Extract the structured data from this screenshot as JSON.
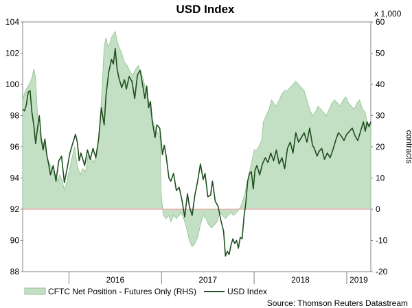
{
  "chart_data": {
    "type": "line+area",
    "title": "USD Index",
    "source": "Source: Thomson Reuters Datastream",
    "left_axis": {
      "ylim": [
        88,
        104
      ],
      "ticks": [
        "88",
        "90",
        "92",
        "94",
        "96",
        "98",
        "100",
        "102",
        "104"
      ]
    },
    "right_axis": {
      "multiplier_label": "x 1,000",
      "label": "contracts",
      "ylim": [
        -20,
        60
      ],
      "ticks": [
        "-20",
        "-10",
        "0",
        "10",
        "20",
        "30",
        "40",
        "50",
        "60"
      ]
    },
    "x_axis": {
      "range": [
        2015.5,
        2019.26
      ],
      "ticks": [
        {
          "label": "2016",
          "pos": 2016
        },
        {
          "label": "2017",
          "pos": 2017
        },
        {
          "label": "2018",
          "pos": 2018
        },
        {
          "label": "2019",
          "pos": 2019
        }
      ]
    },
    "legend": [
      "CFTC Net Position - Futures Only (RHS)",
      "USD Index"
    ],
    "colors": {
      "area_fill": "#c4e0c4",
      "area_stroke": "#8fbf8f",
      "line": "#1e4d1e",
      "zero_line": "#e8a7a7"
    },
    "series": [
      {
        "name": "CFTC Net Position - Futures Only (RHS)",
        "kind": "area",
        "axis": "right",
        "points": [
          [
            2015.5,
            35
          ],
          [
            2015.53,
            38
          ],
          [
            2015.57,
            40
          ],
          [
            2015.6,
            42
          ],
          [
            2015.62,
            45
          ],
          [
            2015.64,
            42
          ],
          [
            2015.66,
            30
          ],
          [
            2015.68,
            25
          ],
          [
            2015.71,
            22
          ],
          [
            2015.74,
            20
          ],
          [
            2015.77,
            16
          ],
          [
            2015.8,
            14
          ],
          [
            2015.83,
            12
          ],
          [
            2015.86,
            11
          ],
          [
            2015.88,
            9
          ],
          [
            2015.9,
            11
          ],
          [
            2015.93,
            9
          ],
          [
            2015.95,
            6
          ],
          [
            2015.97,
            8
          ],
          [
            2016.0,
            12
          ],
          [
            2016.03,
            16
          ],
          [
            2016.06,
            20
          ],
          [
            2016.09,
            14
          ],
          [
            2016.12,
            11
          ],
          [
            2016.15,
            13
          ],
          [
            2016.18,
            12
          ],
          [
            2016.21,
            18
          ],
          [
            2016.24,
            16
          ],
          [
            2016.27,
            15
          ],
          [
            2016.3,
            18
          ],
          [
            2016.33,
            25
          ],
          [
            2016.36,
            40
          ],
          [
            2016.38,
            52
          ],
          [
            2016.4,
            55
          ],
          [
            2016.42,
            52
          ],
          [
            2016.44,
            53
          ],
          [
            2016.46,
            55
          ],
          [
            2016.48,
            56
          ],
          [
            2016.5,
            57
          ],
          [
            2016.52,
            54
          ],
          [
            2016.54,
            52
          ],
          [
            2016.57,
            50
          ],
          [
            2016.6,
            47
          ],
          [
            2016.63,
            46
          ],
          [
            2016.66,
            44
          ],
          [
            2016.69,
            43
          ],
          [
            2016.72,
            45
          ],
          [
            2016.75,
            46
          ],
          [
            2016.77,
            44
          ],
          [
            2016.8,
            42
          ],
          [
            2016.83,
            38
          ],
          [
            2016.86,
            35
          ],
          [
            2016.89,
            30
          ],
          [
            2016.92,
            27
          ],
          [
            2016.95,
            25
          ],
          [
            2016.97,
            24
          ],
          [
            2016.985,
            23
          ],
          [
            2016.995,
            5
          ],
          [
            2017.02,
            -2
          ],
          [
            2017.05,
            -3
          ],
          [
            2017.08,
            -2
          ],
          [
            2017.1,
            -4
          ],
          [
            2017.13,
            -2
          ],
          [
            2017.16,
            -3
          ],
          [
            2017.19,
            -2
          ],
          [
            2017.21,
            -1
          ],
          [
            2017.24,
            -3
          ],
          [
            2017.27,
            -6
          ],
          [
            2017.3,
            -10
          ],
          [
            2017.33,
            -12
          ],
          [
            2017.36,
            -11
          ],
          [
            2017.39,
            -9
          ],
          [
            2017.42,
            -5
          ],
          [
            2017.45,
            -2
          ],
          [
            2017.48,
            -3
          ],
          [
            2017.51,
            -5
          ],
          [
            2017.54,
            -6
          ],
          [
            2017.57,
            -5
          ],
          [
            2017.6,
            -4
          ],
          [
            2017.63,
            -1
          ],
          [
            2017.66,
            -2
          ],
          [
            2017.69,
            -3
          ],
          [
            2017.72,
            -2
          ],
          [
            2017.75,
            -1
          ],
          [
            2017.78,
            -2
          ],
          [
            2017.81,
            -1
          ],
          [
            2017.84,
            0
          ],
          [
            2017.87,
            2
          ],
          [
            2017.9,
            5
          ],
          [
            2017.92,
            8
          ],
          [
            2017.95,
            12
          ],
          [
            2017.98,
            16
          ],
          [
            2018.0,
            19
          ],
          [
            2018.03,
            19
          ],
          [
            2018.05,
            20
          ],
          [
            2018.08,
            22
          ],
          [
            2018.1,
            28
          ],
          [
            2018.13,
            30
          ],
          [
            2018.16,
            32
          ],
          [
            2018.19,
            35
          ],
          [
            2018.21,
            34
          ],
          [
            2018.24,
            33
          ],
          [
            2018.27,
            35
          ],
          [
            2018.3,
            37
          ],
          [
            2018.33,
            38
          ],
          [
            2018.36,
            38
          ],
          [
            2018.39,
            39
          ],
          [
            2018.42,
            40
          ],
          [
            2018.45,
            41
          ],
          [
            2018.48,
            40
          ],
          [
            2018.51,
            39
          ],
          [
            2018.54,
            38
          ],
          [
            2018.57,
            35
          ],
          [
            2018.6,
            32
          ],
          [
            2018.63,
            30
          ],
          [
            2018.66,
            31
          ],
          [
            2018.69,
            33
          ],
          [
            2018.72,
            32
          ],
          [
            2018.75,
            31
          ],
          [
            2018.78,
            30
          ],
          [
            2018.81,
            32
          ],
          [
            2018.84,
            34
          ],
          [
            2018.87,
            35
          ],
          [
            2018.9,
            34
          ],
          [
            2018.93,
            33
          ],
          [
            2018.96,
            35
          ],
          [
            2018.99,
            36
          ],
          [
            2019.02,
            34
          ],
          [
            2019.05,
            33
          ],
          [
            2019.08,
            32
          ],
          [
            2019.11,
            34
          ],
          [
            2019.14,
            35
          ],
          [
            2019.17,
            32
          ],
          [
            2019.2,
            31
          ],
          [
            2019.23,
            26
          ],
          [
            2019.26,
            27
          ]
        ]
      },
      {
        "name": "USD Index",
        "kind": "line",
        "axis": "left",
        "points": [
          [
            2015.5,
            98.4
          ],
          [
            2015.52,
            98.3
          ],
          [
            2015.54,
            98.7
          ],
          [
            2015.56,
            99.5
          ],
          [
            2015.58,
            99.6
          ],
          [
            2015.6,
            98.2
          ],
          [
            2015.62,
            97.4
          ],
          [
            2015.64,
            96.2
          ],
          [
            2015.66,
            97.2
          ],
          [
            2015.68,
            98.0
          ],
          [
            2015.7,
            96.5
          ],
          [
            2015.72,
            95.8
          ],
          [
            2015.74,
            96.5
          ],
          [
            2015.76,
            95.5
          ],
          [
            2015.78,
            94.9
          ],
          [
            2015.8,
            94.2
          ],
          [
            2015.83,
            94.8
          ],
          [
            2015.86,
            93.8
          ],
          [
            2015.89,
            95.1
          ],
          [
            2015.92,
            95.4
          ],
          [
            2015.95,
            93.7
          ],
          [
            2015.98,
            94.6
          ],
          [
            2016.01,
            95.6
          ],
          [
            2016.04,
            96.2
          ],
          [
            2016.07,
            96.8
          ],
          [
            2016.09,
            96.3
          ],
          [
            2016.11,
            95.1
          ],
          [
            2016.13,
            95.6
          ],
          [
            2016.15,
            95.2
          ],
          [
            2016.17,
            94.8
          ],
          [
            2016.2,
            95.8
          ],
          [
            2016.23,
            95.2
          ],
          [
            2016.26,
            95.9
          ],
          [
            2016.29,
            95.3
          ],
          [
            2016.32,
            96.5
          ],
          [
            2016.35,
            98.5
          ],
          [
            2016.38,
            97.4
          ],
          [
            2016.4,
            99.3
          ],
          [
            2016.43,
            100.8
          ],
          [
            2016.46,
            101.6
          ],
          [
            2016.48,
            101.3
          ],
          [
            2016.5,
            102.3
          ],
          [
            2016.52,
            101.0
          ],
          [
            2016.54,
            100.4
          ],
          [
            2016.57,
            99.8
          ],
          [
            2016.6,
            100.3
          ],
          [
            2016.62,
            99.7
          ],
          [
            2016.65,
            100.5
          ],
          [
            2016.68,
            100.2
          ],
          [
            2016.71,
            99.1
          ],
          [
            2016.74,
            100.6
          ],
          [
            2016.77,
            100.9
          ],
          [
            2016.8,
            99.8
          ],
          [
            2016.82,
            99.1
          ],
          [
            2016.84,
            99.9
          ],
          [
            2016.86,
            98.5
          ],
          [
            2016.88,
            98.9
          ],
          [
            2016.9,
            97.6
          ],
          [
            2016.93,
            96.6
          ],
          [
            2016.95,
            97.4
          ],
          [
            2016.98,
            97.2
          ],
          [
            2017.01,
            95.5
          ],
          [
            2017.03,
            96.1
          ],
          [
            2017.05,
            95.4
          ],
          [
            2017.08,
            94.0
          ],
          [
            2017.1,
            93.8
          ],
          [
            2017.13,
            94.3
          ],
          [
            2017.16,
            93.2
          ],
          [
            2017.19,
            93.4
          ],
          [
            2017.22,
            92.6
          ],
          [
            2017.25,
            91.5
          ],
          [
            2017.28,
            93.0
          ],
          [
            2017.3,
            92.2
          ],
          [
            2017.33,
            91.6
          ],
          [
            2017.36,
            92.9
          ],
          [
            2017.39,
            93.8
          ],
          [
            2017.42,
            94.9
          ],
          [
            2017.45,
            93.9
          ],
          [
            2017.47,
            94.3
          ],
          [
            2017.5,
            92.8
          ],
          [
            2017.53,
            92.9
          ],
          [
            2017.55,
            93.8
          ],
          [
            2017.58,
            92.5
          ],
          [
            2017.61,
            92.2
          ],
          [
            2017.64,
            91.3
          ],
          [
            2017.67,
            90.6
          ],
          [
            2017.69,
            89.0
          ],
          [
            2017.71,
            89.3
          ],
          [
            2017.73,
            89.1
          ],
          [
            2017.75,
            89.7
          ],
          [
            2017.77,
            90.1
          ],
          [
            2017.79,
            89.8
          ],
          [
            2017.81,
            90.0
          ],
          [
            2017.83,
            89.5
          ],
          [
            2017.85,
            90.2
          ],
          [
            2017.87,
            90.1
          ],
          [
            2017.89,
            91.5
          ],
          [
            2017.91,
            92.4
          ],
          [
            2017.93,
            93.8
          ],
          [
            2017.95,
            94.3
          ],
          [
            2017.97,
            94.4
          ],
          [
            2017.99,
            93.3
          ],
          [
            2018.01,
            94.5
          ],
          [
            2018.03,
            94.8
          ],
          [
            2018.06,
            94.2
          ],
          [
            2018.09,
            94.9
          ],
          [
            2018.12,
            95.3
          ],
          [
            2018.15,
            95.0
          ],
          [
            2018.18,
            95.6
          ],
          [
            2018.21,
            95.1
          ],
          [
            2018.24,
            95.8
          ],
          [
            2018.27,
            94.9
          ],
          [
            2018.3,
            95.3
          ],
          [
            2018.33,
            94.6
          ],
          [
            2018.36,
            95.9
          ],
          [
            2018.39,
            96.3
          ],
          [
            2018.42,
            95.6
          ],
          [
            2018.45,
            96.9
          ],
          [
            2018.48,
            96.3
          ],
          [
            2018.51,
            96.6
          ],
          [
            2018.54,
            96.9
          ],
          [
            2018.57,
            96.3
          ],
          [
            2018.6,
            97.2
          ],
          [
            2018.63,
            96.1
          ],
          [
            2018.65,
            95.9
          ],
          [
            2018.68,
            95.4
          ],
          [
            2018.7,
            95.7
          ],
          [
            2018.73,
            95.9
          ],
          [
            2018.76,
            95.2
          ],
          [
            2018.79,
            95.6
          ],
          [
            2018.82,
            95.3
          ],
          [
            2018.85,
            95.8
          ],
          [
            2018.88,
            96.4
          ],
          [
            2018.91,
            96.9
          ],
          [
            2018.94,
            96.7
          ],
          [
            2018.97,
            96.4
          ],
          [
            2019.0,
            96.8
          ],
          [
            2019.03,
            97.0
          ],
          [
            2019.06,
            97.2
          ],
          [
            2019.09,
            96.7
          ],
          [
            2019.12,
            96.4
          ],
          [
            2019.14,
            96.8
          ],
          [
            2019.16,
            97.2
          ],
          [
            2019.18,
            97.6
          ],
          [
            2019.2,
            97.0
          ],
          [
            2019.22,
            97.6
          ],
          [
            2019.24,
            97.3
          ],
          [
            2019.26,
            97.6
          ]
        ]
      }
    ]
  }
}
